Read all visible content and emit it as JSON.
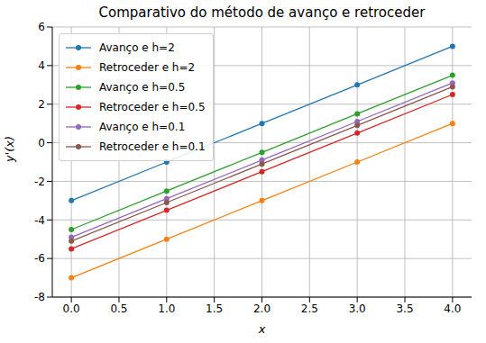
{
  "chart_data": {
    "type": "line",
    "title": "Comparativo do método de avanço e retroceder",
    "x_label": "x",
    "y_label": "y'(x)",
    "x": [
      0,
      1,
      2,
      3,
      4
    ],
    "series": [
      {
        "name": "Avanço e h=2",
        "color": "#1f77b4",
        "marker": "circle",
        "values": [
          -3,
          -1,
          1,
          3,
          5
        ]
      },
      {
        "name": "Retroceder e h=2",
        "color": "#ff7f0e",
        "marker": "circle",
        "values": [
          -7,
          -5,
          -3,
          -1,
          1
        ]
      },
      {
        "name": "Avanço e h=0.5",
        "color": "#2ca02c",
        "marker": "circle",
        "values": [
          -4.5,
          -2.5,
          -0.5,
          1.5,
          3.5
        ]
      },
      {
        "name": "Retroceder e h=0.5",
        "color": "#d62728",
        "marker": "circle",
        "values": [
          -5.5,
          -3.5,
          -1.5,
          0.5,
          2.5
        ]
      },
      {
        "name": "Avanço e h=0.1",
        "color": "#9467bd",
        "marker": "circle",
        "values": [
          -4.9,
          -2.9,
          -0.9,
          1.1,
          3.1
        ]
      },
      {
        "name": "Retroceder e h=0.1",
        "color": "#8c564b",
        "marker": "circle",
        "values": [
          -5.1,
          -3.1,
          -1.1,
          0.9,
          2.9
        ]
      }
    ],
    "xlim": [
      -0.2,
      4.2
    ],
    "xticks": [
      {
        "value": 0,
        "label": "0.0"
      },
      {
        "value": 0.5,
        "label": "0.5"
      },
      {
        "value": 1,
        "label": "1.0"
      },
      {
        "value": 1.5,
        "label": "1.5"
      },
      {
        "value": 2,
        "label": "2.0"
      },
      {
        "value": 2.5,
        "label": "2.5"
      },
      {
        "value": 3,
        "label": "3.0"
      },
      {
        "value": 3.5,
        "label": "3.5"
      },
      {
        "value": 4,
        "label": "4.0"
      }
    ],
    "ylim": [
      -8,
      6
    ],
    "yticks": [
      -8,
      -6,
      -4,
      -2,
      0,
      2,
      4,
      6
    ],
    "grid": true,
    "legend": "upper left"
  }
}
